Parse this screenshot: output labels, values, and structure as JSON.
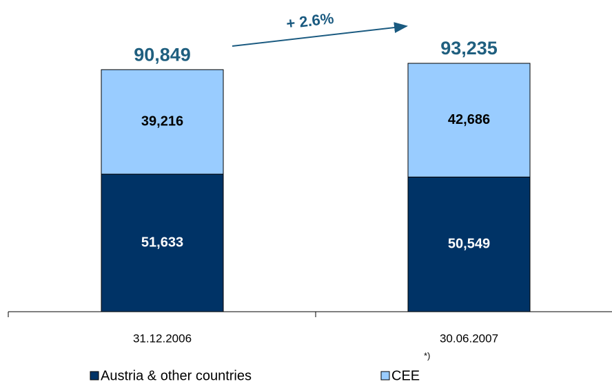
{
  "chart_data": {
    "type": "stacked_bar",
    "categories": [
      "31.12.2006",
      "30.06.2007"
    ],
    "series": [
      {
        "name": "Austria & other countries",
        "color": "#003366",
        "values": [
          51633,
          50549
        ],
        "value_labels": [
          "51,633",
          "50,549"
        ]
      },
      {
        "name": "CEE",
        "color": "#99ccff",
        "values": [
          39216,
          42686
        ],
        "value_labels": [
          "39,216",
          "42,686"
        ]
      }
    ],
    "totals": [
      90849,
      93235
    ],
    "total_labels": [
      "90,849",
      "93,235"
    ],
    "annotation": "+ 2.6%",
    "legend_note": "*)",
    "ylim": [
      0,
      117000
    ]
  }
}
